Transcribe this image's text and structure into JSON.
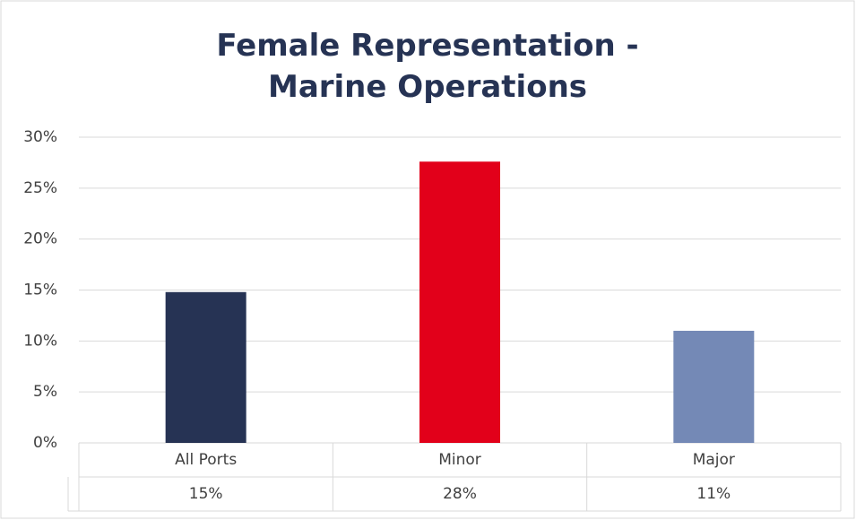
{
  "chart_data": {
    "type": "bar",
    "title": "Female Representation - Marine Operations",
    "categories": [
      "All Ports",
      "Minor",
      "Major"
    ],
    "values": [
      14.8,
      27.6,
      11.0
    ],
    "value_labels": [
      "15%",
      "28%",
      "11%"
    ],
    "colors": [
      "#263354",
      "#e2001a",
      "#7489b6"
    ],
    "ylim": [
      0,
      30
    ],
    "yticks": [
      {
        "value": 0,
        "label": "0%"
      },
      {
        "value": 5,
        "label": "5%"
      },
      {
        "value": 10,
        "label": "10%"
      },
      {
        "value": 15,
        "label": "15%"
      },
      {
        "value": 20,
        "label": "20%"
      },
      {
        "value": 25,
        "label": "25%"
      },
      {
        "value": 30,
        "label": "30%"
      }
    ],
    "grid": true
  }
}
